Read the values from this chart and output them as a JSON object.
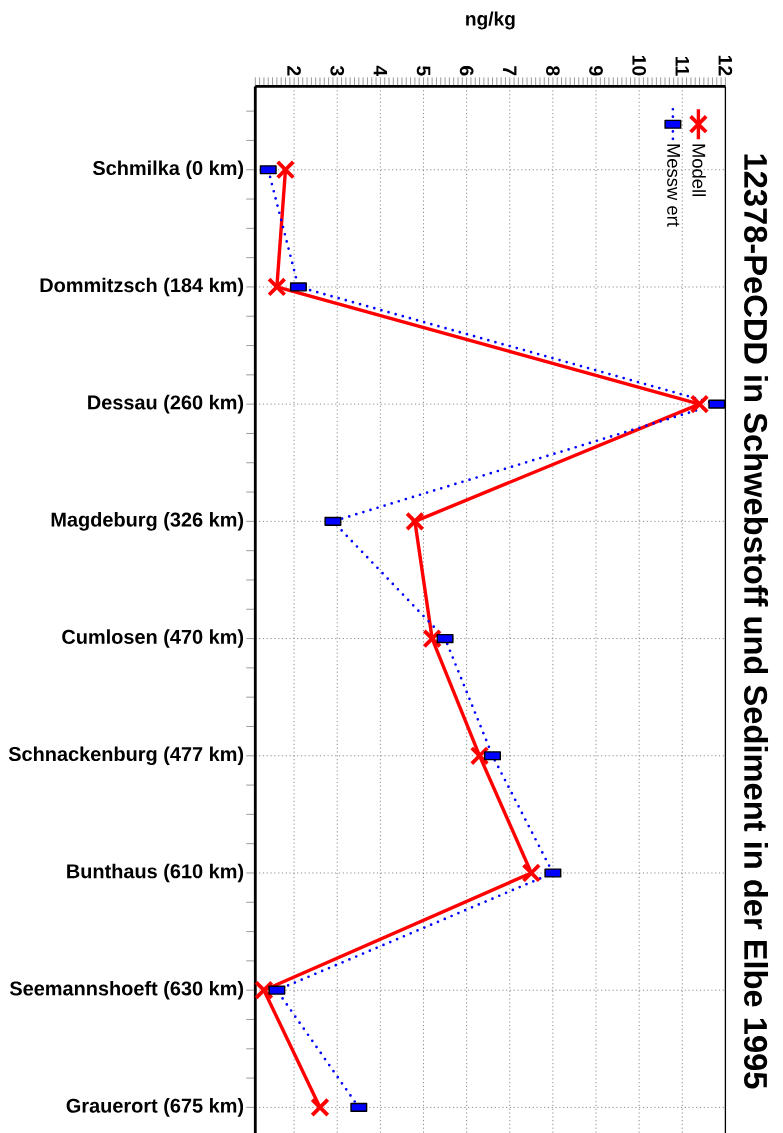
{
  "chart_data": {
    "type": "line",
    "title": "12378-PeCDD in Schwebstoff und Sediment in der Elbe 1995",
    "xlabel": "ng/kg",
    "orientation": "horizontal",
    "categories": [
      "Schmilka (0 km)",
      "Dommitzsch (184 km)",
      "Dessau (260 km)",
      "Magdeburg (326 km)",
      "Cumlosen (470 km)",
      "Schnackenburg (477 km)",
      "Bunthaus (610 km)",
      "Seemannshoeft (630 km)",
      "Grauerort (675 km)"
    ],
    "series": [
      {
        "name": "Modell",
        "color": "#ff0000",
        "marker": "cross",
        "line_style": "solid",
        "values": [
          1.8,
          1.6,
          11.4,
          4.8,
          5.2,
          6.3,
          7.5,
          1.3,
          2.6
        ]
      },
      {
        "name": "Messw ert",
        "color": "#0000ff",
        "marker": "square",
        "line_style": "dotted",
        "values": [
          1.4,
          2.1,
          11.8,
          2.9,
          5.5,
          6.6,
          8.0,
          1.6,
          3.5
        ]
      }
    ],
    "xlim": [
      1.1,
      12
    ],
    "xticks": [
      2,
      3,
      4,
      5,
      6,
      7,
      8,
      9,
      10,
      11,
      12
    ],
    "grid": true,
    "legend": "top right"
  }
}
